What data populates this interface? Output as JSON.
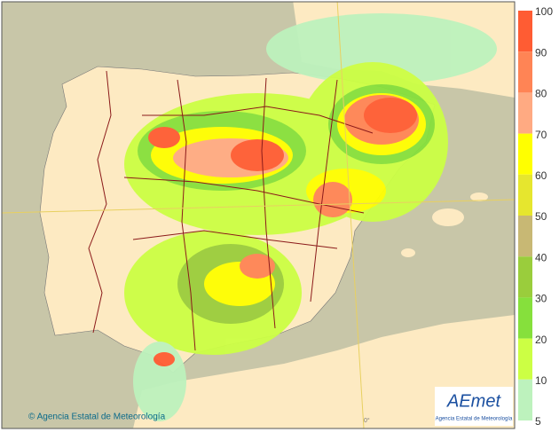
{
  "map": {
    "copyright": "© Agencia Estatal de Meteorología",
    "logo": {
      "brand": "AEmet",
      "subtitle": "Agencia Estatal de Meteorología"
    },
    "meridian_label": "0°",
    "legend": {
      "ticks": [
        100,
        90,
        80,
        70,
        60,
        50,
        40,
        30,
        20,
        10,
        5
      ],
      "colors": [
        "#ff5c33",
        "#ff8455",
        "#ffaa82",
        "#ffff00",
        "#e6e62e",
        "#c8b874",
        "#9acd3c",
        "#86e03c",
        "#ccff44",
        "#bdf2bd"
      ]
    }
  }
}
